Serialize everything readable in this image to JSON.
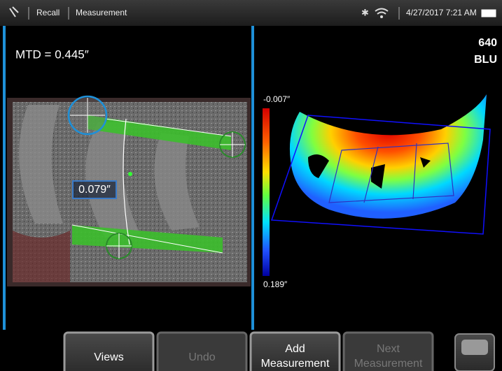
{
  "status_bar": {
    "recall": "Recall",
    "screen": "Measurement",
    "datetime": "4/27/2017 7:21 AM"
  },
  "left_panel": {
    "mtd": "MTD = 0.445″",
    "measurement_label": "0.079″"
  },
  "right_panel": {
    "resolution": "640",
    "mode": "BLU",
    "scale_top": "-0.007″",
    "scale_bottom": "0.189″"
  },
  "buttons": [
    {
      "lines": [
        "Views"
      ],
      "enabled": true
    },
    {
      "lines": [
        "Undo"
      ],
      "enabled": false
    },
    {
      "lines": [
        "Add",
        "Measurement"
      ],
      "enabled": true
    },
    {
      "lines": [
        "Next",
        "Measurement"
      ],
      "enabled": false
    }
  ]
}
